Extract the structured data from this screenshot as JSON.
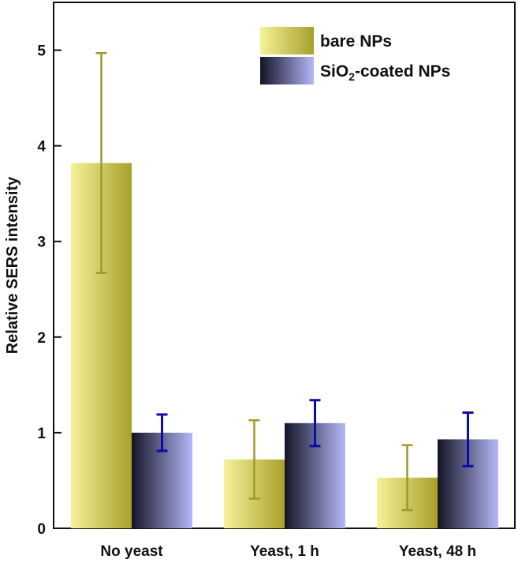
{
  "chart_data": {
    "type": "bar",
    "categories": [
      "No yeast",
      "Yeast, 1 h",
      "Yeast, 48 h"
    ],
    "series": [
      {
        "name": "bare NPs",
        "values": [
          3.82,
          0.72,
          0.53
        ],
        "error": [
          1.15,
          0.41,
          0.34
        ],
        "colors": {
          "light": "#f5f29a",
          "dark": "#a8a02a",
          "errorbar": "#a09a2c"
        }
      },
      {
        "name_main": "SiO",
        "name_sub": "2",
        "name_rest": "-coated NPs",
        "values": [
          1.0,
          1.1,
          0.93
        ],
        "error": [
          0.19,
          0.24,
          0.28
        ],
        "colors": {
          "light": "#b4b8f8",
          "dark": "#141426",
          "errorbar": "#0c0ca8"
        }
      }
    ],
    "ylabel": "Relative SERS intensity",
    "ylim": [
      0,
      5.5
    ],
    "yticks": [
      0,
      1,
      2,
      3,
      4,
      5
    ],
    "grid": false,
    "legend_position": "top-right"
  }
}
